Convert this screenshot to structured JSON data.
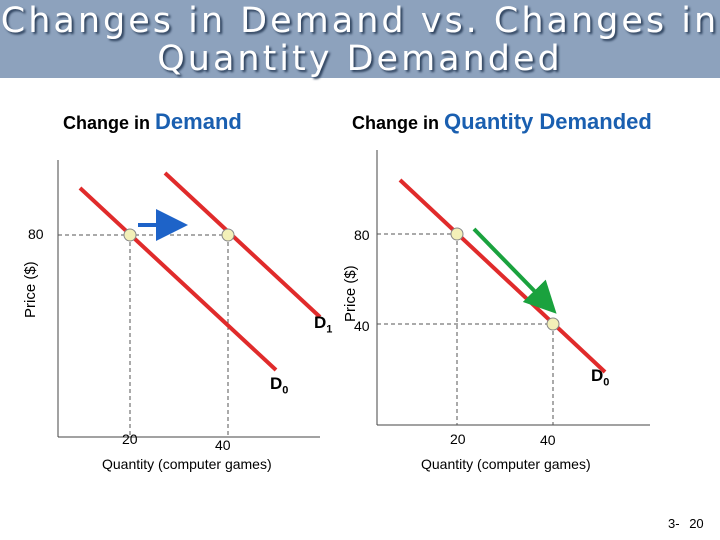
{
  "title": {
    "line1": "Changes in Demand vs. Changes in",
    "line2": "Quantity Demanded"
  },
  "left_panel": {
    "heading_prefix": "Change in",
    "heading_emphasis": "Demand",
    "y_axis_label": "Price ($)",
    "x_axis_label": "Quantity (computer games)",
    "price_tick": "80",
    "qty_ticks": [
      "20",
      "40"
    ],
    "curve_labels": {
      "d0": "D",
      "d0_sub": "0",
      "d1": "D",
      "d1_sub": "1"
    }
  },
  "right_panel": {
    "heading_prefix": "Change in",
    "heading_emphasis": "Quantity Demanded",
    "y_axis_label": "Price ($)",
    "x_axis_label": "Quantity (computer games)",
    "price_ticks": [
      "80",
      "40"
    ],
    "qty_ticks": [
      "20",
      "40"
    ],
    "curve_labels": {
      "d0": "D",
      "d0_sub": "0"
    }
  },
  "colors": {
    "title_band": "#8da2bd",
    "curve": "#e02b2b",
    "shift_arrow": "#1e63c8",
    "movement_arrow": "#1aa23e",
    "point_fill": "#f3f0b8",
    "heading_emphasis": "#1a5fb0"
  },
  "page_number": {
    "chapter": "3-",
    "page": "20"
  }
}
